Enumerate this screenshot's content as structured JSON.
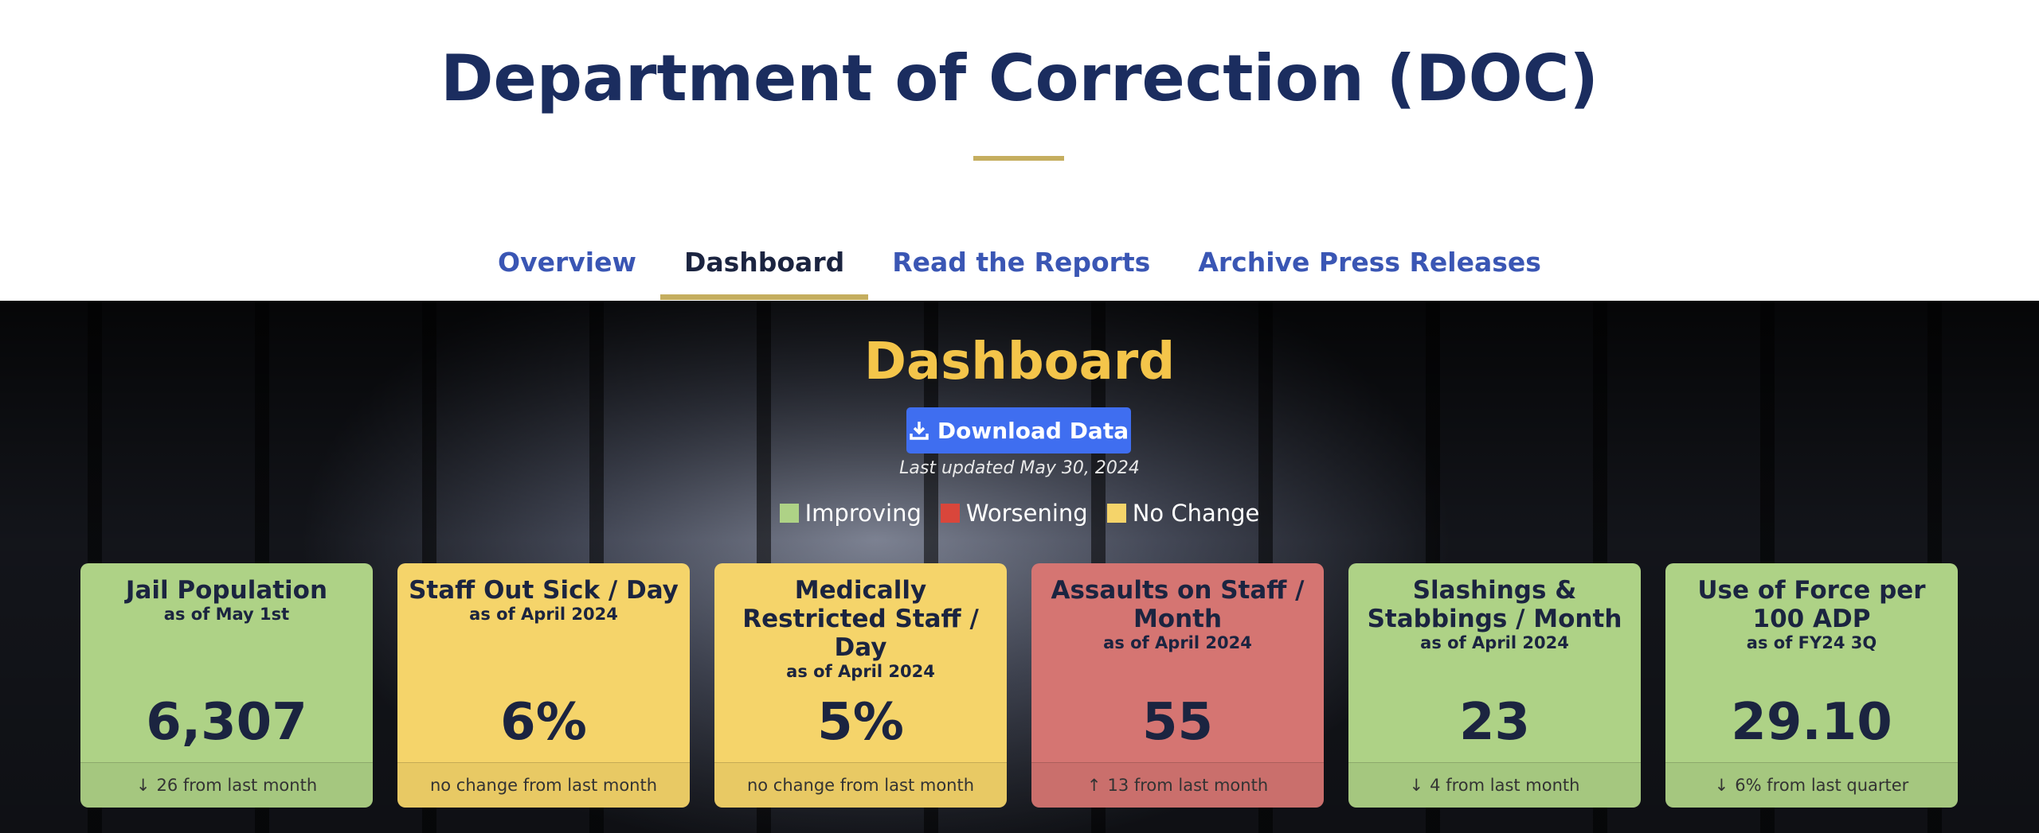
{
  "header": {
    "title": "Department of Correction (DOC)"
  },
  "nav": {
    "tabs": [
      "Overview",
      "Dashboard",
      "Read the Reports",
      "Archive Press Releases"
    ]
  },
  "dashboard": {
    "title": "Dashboard",
    "download": "Download Data",
    "updated": "Last updated May 30, 2024",
    "legend": [
      "Improving",
      "Worsening",
      "No Change"
    ],
    "cards": [
      {
        "title": "Jail Population",
        "subtitle": "as of May 1st",
        "value": "6,307",
        "change": "26 from last month"
      },
      {
        "title": "Staff Out Sick / Day",
        "subtitle": "as of April 2024",
        "value": "6%",
        "change": "no change from last month"
      },
      {
        "title": "Medically Restricted Staff / Day",
        "subtitle": "as of April 2024",
        "value": "5%",
        "change": "no change from last month"
      },
      {
        "title": "Assaults on Staff / Month",
        "subtitle": "as of April 2024",
        "value": "55",
        "change": "13 from last month"
      },
      {
        "title": "Slashings & Stabbings / Month",
        "subtitle": "as of April 2024",
        "value": "23",
        "change": "4 from last month"
      },
      {
        "title": "Use of Force per 100 ADP",
        "subtitle": "as of FY24 3Q",
        "value": "29.10",
        "change": "6% from last quarter"
      }
    ]
  }
}
